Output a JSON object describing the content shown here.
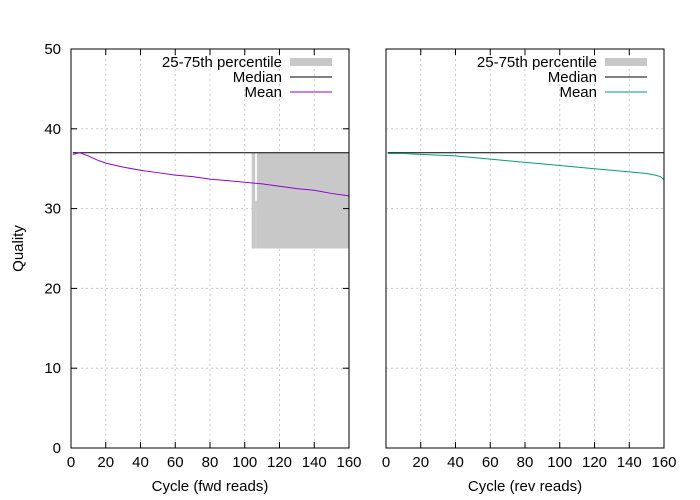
{
  "chart_data": [
    {
      "type": "line",
      "xlabel": "Cycle (fwd reads)",
      "ylabel": "Quality",
      "xlim": [
        0,
        160
      ],
      "ylim": [
        0,
        50
      ],
      "xticks": [
        "0",
        "20",
        "40",
        "60",
        "80",
        "100",
        "120",
        "140",
        "160"
      ],
      "yticks": [
        "0",
        "10",
        "20",
        "30",
        "40",
        "50"
      ],
      "grid": true,
      "legend": "top-right",
      "series": [
        {
          "name": "25-75th percentile",
          "kind": "band",
          "color": "#c8c8c8",
          "points": [
            [
              104,
              25,
              37
            ],
            [
              106,
              25,
              31
            ],
            [
              107,
              25,
              37
            ],
            [
              160,
              25,
              37
            ]
          ]
        },
        {
          "name": "Median",
          "kind": "line",
          "color": "#000000",
          "points": [
            [
              1,
              37
            ],
            [
              160,
              37
            ]
          ]
        },
        {
          "name": "Mean",
          "kind": "line",
          "color": "#9400d3",
          "points": [
            [
              1,
              36.8
            ],
            [
              5,
              37.0
            ],
            [
              10,
              36.6
            ],
            [
              15,
              36.1
            ],
            [
              20,
              35.7
            ],
            [
              30,
              35.2
            ],
            [
              40,
              34.8
            ],
            [
              50,
              34.5
            ],
            [
              60,
              34.2
            ],
            [
              70,
              34.0
            ],
            [
              80,
              33.7
            ],
            [
              90,
              33.5
            ],
            [
              100,
              33.3
            ],
            [
              110,
              33.1
            ],
            [
              120,
              32.8
            ],
            [
              130,
              32.5
            ],
            [
              140,
              32.3
            ],
            [
              150,
              31.9
            ],
            [
              160,
              31.6
            ]
          ]
        }
      ]
    },
    {
      "type": "line",
      "xlabel": "Cycle (rev reads)",
      "ylabel": "",
      "xlim": [
        0,
        160
      ],
      "ylim": [
        0,
        50
      ],
      "xticks": [
        "0",
        "20",
        "40",
        "60",
        "80",
        "100",
        "120",
        "140",
        "160"
      ],
      "yticks": [],
      "grid": true,
      "legend": "top-right",
      "series": [
        {
          "name": "25-75th percentile",
          "kind": "band",
          "color": "#c8c8c8",
          "points": []
        },
        {
          "name": "Median",
          "kind": "line",
          "color": "#000000",
          "points": [
            [
              1,
              37
            ],
            [
              160,
              37
            ]
          ]
        },
        {
          "name": "Mean",
          "kind": "line",
          "color": "#009e73",
          "points": [
            [
              1,
              36.9
            ],
            [
              10,
              36.9
            ],
            [
              20,
              36.8
            ],
            [
              30,
              36.7
            ],
            [
              40,
              36.6
            ],
            [
              50,
              36.4
            ],
            [
              60,
              36.2
            ],
            [
              70,
              36.0
            ],
            [
              80,
              35.8
            ],
            [
              90,
              35.6
            ],
            [
              100,
              35.4
            ],
            [
              110,
              35.2
            ],
            [
              120,
              35.0
            ],
            [
              130,
              34.8
            ],
            [
              140,
              34.6
            ],
            [
              150,
              34.4
            ],
            [
              155,
              34.2
            ],
            [
              158,
              34.0
            ],
            [
              159,
              33.8
            ],
            [
              160,
              33.6
            ]
          ]
        }
      ]
    }
  ]
}
